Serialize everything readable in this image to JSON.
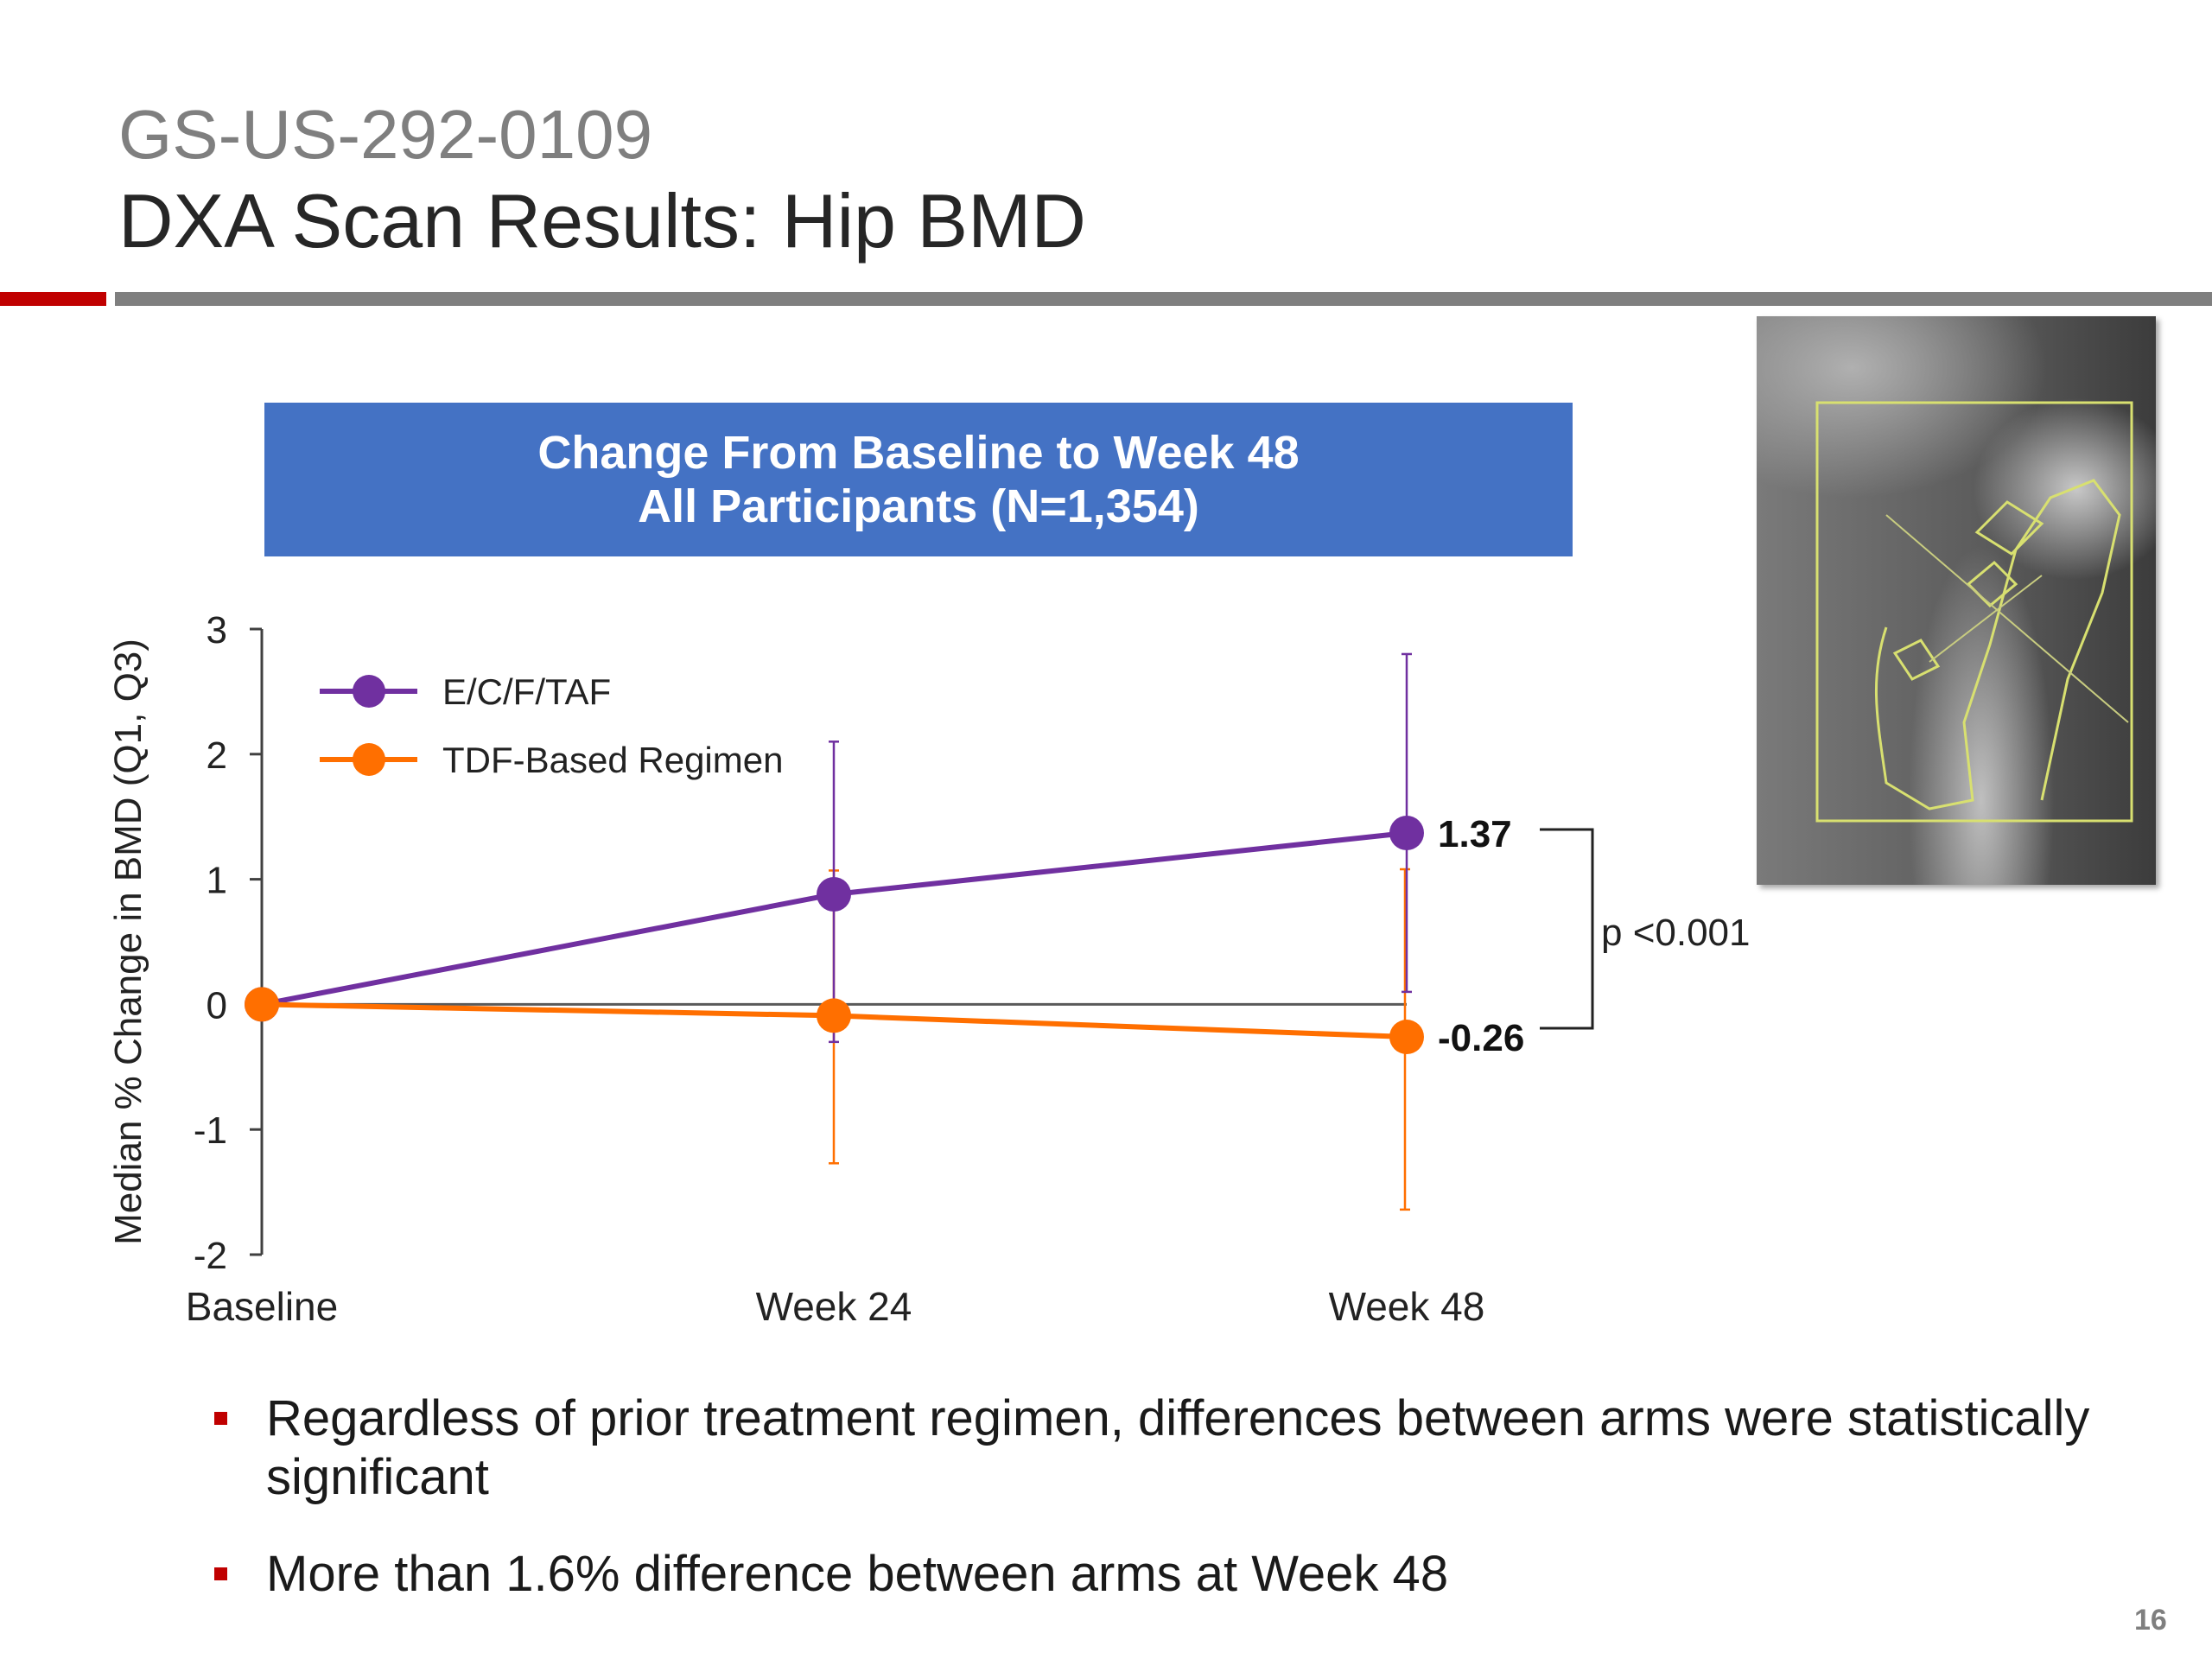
{
  "slide": {
    "subtitle": "GS-US-292-0109",
    "title": "DXA Scan Results: Hip BMD",
    "banner_line1": "Change From Baseline to Week 48",
    "banner_line2": "All Participants (N=1,354)",
    "page_number": "16",
    "image_description_icon": "hip-dxa-scan-image",
    "colors": {
      "accent_red": "#c00000",
      "rule_gray": "#7f7f7f",
      "banner_blue": "#4472c4"
    }
  },
  "bullets": [
    {
      "text": "Regardless of prior treatment regimen, differences between arms were statistically significant"
    },
    {
      "text": "More than 1.6% difference between arms at Week 48"
    }
  ],
  "chart_data": {
    "type": "line",
    "title": "",
    "xlabel": "",
    "ylabel": "Median % Change in BMD (Q1, Q3)",
    "categories": [
      "Baseline",
      "Week 24",
      "Week 48"
    ],
    "ylim": [
      -2,
      3
    ],
    "yticks": [
      3,
      2,
      1,
      0,
      -1,
      -2
    ],
    "grid": false,
    "legend_position": "top-left",
    "series": [
      {
        "name": "E/C/F/TAF",
        "color": "#7030a0",
        "values": [
          0,
          0.88,
          1.37
        ],
        "q1": [
          0,
          -0.3,
          0.1
        ],
        "q3": [
          0,
          2.1,
          2.8
        ]
      },
      {
        "name": "TDF-Based Regimen",
        "color": "#ff6f00",
        "values": [
          0,
          -0.09,
          -0.26
        ],
        "q1": [
          0,
          -1.27,
          -1.64
        ],
        "q3": [
          0,
          1.07,
          1.08
        ]
      }
    ],
    "annotations": [
      {
        "label": "1.37",
        "series": 0,
        "point": 2
      },
      {
        "label": "-0.26",
        "series": 1,
        "point": 2
      }
    ],
    "significance": "p <0.001"
  }
}
